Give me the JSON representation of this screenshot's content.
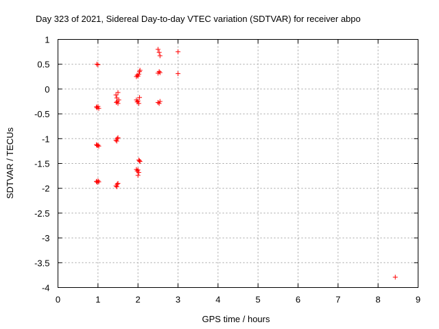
{
  "chart_data": {
    "type": "scatter",
    "title": "Day 323 of 2021, Sidereal Day-to-day VTEC variation (SDTVAR) for receiver abpo",
    "xlabel": "GPS time / hours",
    "ylabel": "SDTVAR / TECUs",
    "xlim": [
      0,
      9
    ],
    "ylim": [
      -4,
      1
    ],
    "xticks": [
      0,
      1,
      2,
      3,
      4,
      5,
      6,
      7,
      8,
      9
    ],
    "xtick_labels": [
      "0",
      "1",
      "2",
      "3",
      "4",
      "5",
      "6",
      "7",
      "8",
      "9"
    ],
    "yticks": [
      1,
      0.5,
      0,
      -0.5,
      -1,
      -1.5,
      -2,
      -2.5,
      -3,
      -3.5,
      -4
    ],
    "ytick_labels": [
      "1",
      "0.5",
      "0",
      "-0.5",
      "-1",
      "-1.5",
      "-2",
      "-2.5",
      "-3",
      "-3.5",
      "-4"
    ],
    "grid": true,
    "marker": "+",
    "color": "#ff0000",
    "series": [
      {
        "name": "SDTVAR",
        "points": [
          [
            0.97,
            0.5
          ],
          [
            1.0,
            0.49
          ],
          [
            0.96,
            -0.36
          ],
          [
            0.98,
            -0.38
          ],
          [
            1.0,
            -0.35
          ],
          [
            1.02,
            -0.39
          ],
          [
            0.96,
            -1.12
          ],
          [
            0.98,
            -1.14
          ],
          [
            1.0,
            -1.13
          ],
          [
            1.02,
            -1.15
          ],
          [
            0.96,
            -1.86
          ],
          [
            0.98,
            -1.88
          ],
          [
            1.0,
            -1.85
          ],
          [
            1.02,
            -1.87
          ],
          [
            1.45,
            -0.12
          ],
          [
            1.47,
            -0.18
          ],
          [
            1.5,
            -0.07
          ],
          [
            1.48,
            -0.25
          ],
          [
            1.52,
            -0.22
          ],
          [
            1.46,
            -0.27
          ],
          [
            1.5,
            -0.29
          ],
          [
            1.45,
            -1.03
          ],
          [
            1.48,
            -1.0
          ],
          [
            1.5,
            -0.98
          ],
          [
            1.47,
            -1.05
          ],
          [
            1.45,
            -1.95
          ],
          [
            1.48,
            -1.92
          ],
          [
            1.5,
            -1.9
          ],
          [
            1.47,
            -1.97
          ],
          [
            1.96,
            0.25
          ],
          [
            1.98,
            0.28
          ],
          [
            2.0,
            0.26
          ],
          [
            2.02,
            0.3
          ],
          [
            2.04,
            0.35
          ],
          [
            2.05,
            0.38
          ],
          [
            1.96,
            -0.22
          ],
          [
            1.98,
            -0.26
          ],
          [
            2.0,
            -0.24
          ],
          [
            2.02,
            -0.29
          ],
          [
            2.04,
            -0.17
          ],
          [
            2.02,
            -1.43
          ],
          [
            2.04,
            -1.45
          ],
          [
            2.05,
            -1.46
          ],
          [
            1.96,
            -1.62
          ],
          [
            1.98,
            -1.65
          ],
          [
            2.0,
            -1.63
          ],
          [
            2.02,
            -1.68
          ],
          [
            2.0,
            -1.74
          ],
          [
            2.5,
            0.8
          ],
          [
            2.53,
            0.74
          ],
          [
            2.55,
            0.67
          ],
          [
            2.5,
            0.32
          ],
          [
            2.53,
            0.35
          ],
          [
            2.55,
            0.33
          ],
          [
            2.5,
            -0.27
          ],
          [
            2.53,
            -0.29
          ],
          [
            2.55,
            -0.25
          ],
          [
            3.0,
            0.75
          ],
          [
            3.0,
            0.31
          ],
          [
            8.43,
            -3.79
          ]
        ]
      }
    ]
  }
}
